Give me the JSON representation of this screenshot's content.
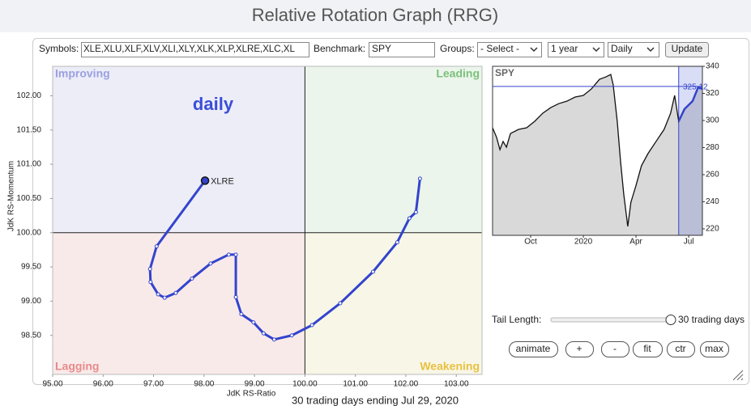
{
  "header": {
    "title": "Relative Rotation Graph (RRG)"
  },
  "controls": {
    "symbols_label": "Symbols:",
    "symbols": "XLE,XLU,XLF,XLV,XLI,XLY,XLK,XLP,XLRE,XLC,XL",
    "benchmark_label": "Benchmark:",
    "benchmark": "SPY",
    "groups_label": "Groups:",
    "groups": "- Select -",
    "period": "1 year",
    "frequency": "Daily",
    "update": "Update"
  },
  "chart_data": [
    {
      "type": "line",
      "title": "daily",
      "x_label": "JdK RS-Ratio",
      "y_label": "JdK RS-Momentum",
      "quadrants": [
        "Improving",
        "Leading",
        "Lagging",
        "Weakening"
      ],
      "center": [
        100,
        100
      ],
      "x": [
        102.28,
        102.2,
        102.07,
        101.83,
        101.35,
        100.7,
        100.14,
        99.74,
        99.39,
        99.18,
        98.98,
        98.74,
        98.63,
        98.63,
        98.49,
        98.13,
        97.76,
        97.44,
        97.22,
        97.09,
        96.94,
        96.93,
        97.06,
        98.02
      ],
      "series": [
        {
          "name": "XLRE",
          "color": "#3344cc",
          "values": [
            100.79,
            100.3,
            100.21,
            99.86,
            99.43,
            98.97,
            98.65,
            98.5,
            98.44,
            98.53,
            98.69,
            98.81,
            99.06,
            99.68,
            99.68,
            99.55,
            99.33,
            99.12,
            99.05,
            99.1,
            99.28,
            99.47,
            99.8,
            100.76
          ]
        }
      ],
      "xlim": [
        95,
        103.51
      ],
      "ylim": [
        97.93,
        102.43
      ],
      "xticks": [
        {
          "value": 95,
          "label": "95.00"
        },
        {
          "value": 96,
          "label": "96.00"
        },
        {
          "value": 97,
          "label": "97.00"
        },
        {
          "value": 98,
          "label": "98.00"
        },
        {
          "value": 99,
          "label": "99.00"
        },
        {
          "value": 100,
          "label": "100.00"
        },
        {
          "value": 101,
          "label": "101.00"
        },
        {
          "value": 102,
          "label": "102.00"
        },
        {
          "value": 103,
          "label": "103.00"
        }
      ],
      "yticks": [
        {
          "value": 98.5,
          "label": "98.50"
        },
        {
          "value": 99,
          "label": "99.00"
        },
        {
          "value": 99.5,
          "label": "99.50"
        },
        {
          "value": 100,
          "label": "100.00"
        },
        {
          "value": 100.5,
          "label": "100.50"
        },
        {
          "value": 101,
          "label": "101.00"
        },
        {
          "value": 101.5,
          "label": "101.50"
        },
        {
          "value": 102,
          "label": "102.00"
        }
      ]
    },
    {
      "type": "line",
      "title": "SPY",
      "color": "#111111",
      "x": [
        -0.17,
        0.06,
        0.25,
        0.43,
        0.62,
        0.85,
        1.31,
        1.77,
        2.23,
        2.69,
        3.15,
        3.61,
        4.07,
        4.53,
        5.0,
        5.46,
        5.92,
        6.29,
        6.56,
        6.7,
        6.93,
        7.12,
        7.3,
        7.53,
        7.71,
        7.99,
        8.31,
        8.68,
        9.14,
        9.6,
        9.97,
        10.2,
        10.43,
        10.76,
        11.22,
        11.54,
        11.77
      ],
      "values": [
        294.6,
        287.5,
        278.5,
        284.5,
        280.3,
        290.4,
        293.4,
        294.6,
        299.4,
        305.4,
        309.6,
        312.5,
        314.3,
        317.3,
        318.5,
        323.3,
        330.4,
        332.2,
        334.0,
        326.3,
        299.4,
        269.6,
        245.7,
        221.8,
        239.7,
        251.6,
        266.6,
        275.5,
        284.5,
        293.4,
        305.4,
        318.5,
        299.4,
        308.4,
        314.3,
        324.5,
        323.3
      ],
      "xlim": [
        -0.17,
        11.78
      ],
      "ylim": [
        215.2,
        340
      ],
      "xticks": [
        {
          "value": 2,
          "label": "Oct"
        },
        {
          "value": 5,
          "label": "2020"
        },
        {
          "value": 8,
          "label": "Apr"
        },
        {
          "value": 11,
          "label": "Jul"
        }
      ],
      "yticks": [
        220,
        240,
        260,
        280,
        300,
        320,
        340
      ],
      "annotations": [
        {
          "value": 325.12,
          "label": "325.12"
        }
      ],
      "highlight_xlim": [
        10.43,
        11.77
      ],
      "highlight_color": "#3344cc"
    }
  ],
  "tail": {
    "label": "Tail Length:",
    "value": "30 trading days"
  },
  "buttons": [
    "animate",
    "+",
    "-",
    "fit",
    "ctr",
    "max"
  ],
  "footer": "30 trading days ending Jul 29, 2020"
}
